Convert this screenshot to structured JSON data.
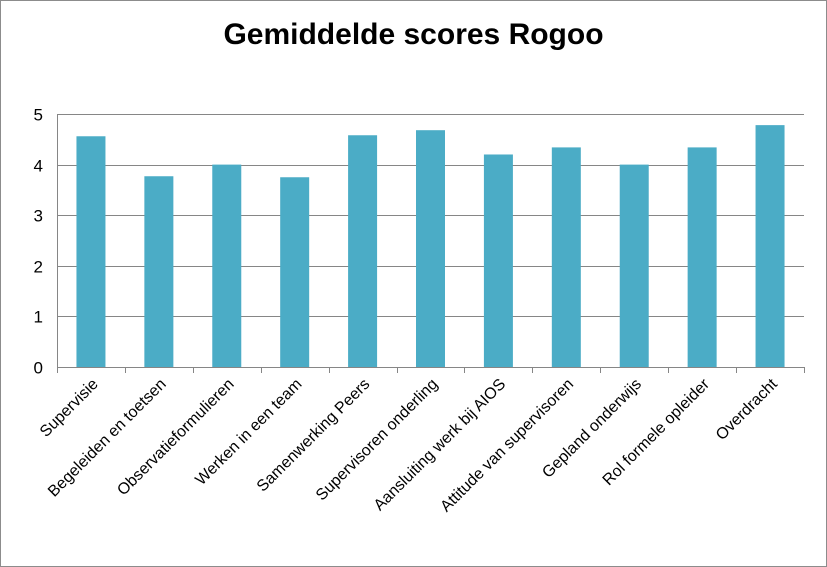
{
  "chart_data": {
    "type": "bar",
    "title": "Gemiddelde scores Rogoo",
    "xlabel": "",
    "ylabel": "",
    "categories": [
      "Supervisie",
      "Begeleiden en toetsen",
      "Observatieformulieren",
      "Werken in een team",
      "Samenwerking Peers",
      "Supervisoren onderling",
      "Aansluiting werk bij AIOS",
      "Attitude van supervisoren",
      "Gepland onderwijs",
      "Rol formele opleider",
      "Overdracht"
    ],
    "values": [
      4.56,
      3.77,
      4.0,
      3.75,
      4.58,
      4.68,
      4.2,
      4.34,
      4.0,
      4.34,
      4.78
    ],
    "ylim": [
      0,
      5
    ],
    "yticks": [
      0,
      1,
      2,
      3,
      4,
      5
    ],
    "grid": true,
    "legend": "none",
    "colors": {
      "bar": "#4bacc6",
      "grid": "#868686",
      "axis": "#868686"
    }
  }
}
